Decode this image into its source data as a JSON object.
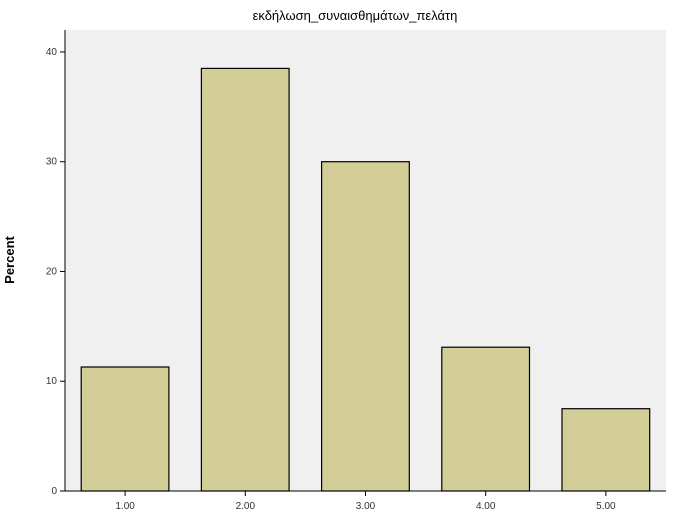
{
  "chart_data": {
    "type": "bar",
    "title": "εκδήλωση_συναισθημάτων_πελάτη",
    "xlabel": "",
    "ylabel": "Percent",
    "categories": [
      "1.00",
      "2.00",
      "3.00",
      "4.00",
      "5.00"
    ],
    "values": [
      11.3,
      38.5,
      30.0,
      13.1,
      7.5
    ],
    "ylim": [
      0,
      42
    ],
    "yticks": [
      0,
      10,
      20,
      30,
      40
    ],
    "ytick_labels": [
      "0",
      "10",
      "20",
      "30",
      "40"
    ],
    "grid": false,
    "legend": "none"
  },
  "colors": {
    "plot_background": "#f0f0f0",
    "bar_fill": "#d3ce97",
    "bar_stroke": "#000000"
  }
}
